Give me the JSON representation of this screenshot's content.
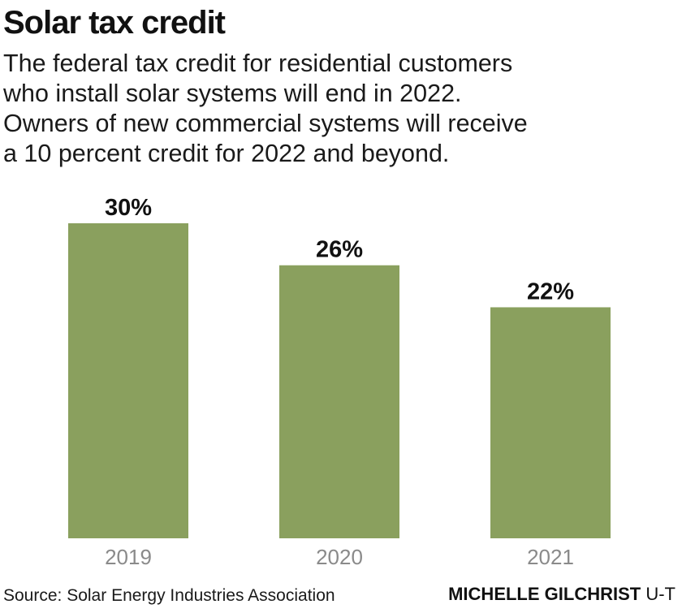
{
  "title": "Solar tax credit",
  "subtitle_lines": [
    "The federal tax credit for residential customers",
    "who install solar systems will end in 2022.",
    "Owners of new commercial systems will receive",
    "a 10 percent credit for 2022 and beyond."
  ],
  "chart_data": {
    "type": "bar",
    "categories": [
      "2019",
      "2020",
      "2021"
    ],
    "values": [
      30,
      26,
      22
    ],
    "value_labels": [
      "30%",
      "26%",
      "22%"
    ],
    "ylim": [
      0,
      30
    ],
    "grid": false,
    "colors": {
      "bar": "#8aa05e",
      "category_label": "#8a8a8a",
      "value_label": "#111111"
    }
  },
  "footer": {
    "source": "Source: Solar Energy Industries Association",
    "credit_name": "MICHELLE GILCHRIST",
    "credit_org": "U-T"
  }
}
